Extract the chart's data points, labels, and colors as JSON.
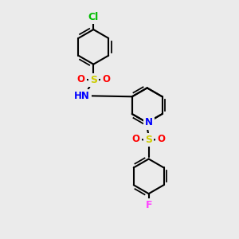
{
  "background_color": "#ebebeb",
  "atom_colors": {
    "C": "#000000",
    "N": "#0000ff",
    "O": "#ff0000",
    "S": "#cccc00",
    "Cl": "#00bb00",
    "F": "#ff44ff",
    "H": "#444444"
  },
  "bond_color": "#000000",
  "bond_width": 1.5,
  "BL": 22
}
